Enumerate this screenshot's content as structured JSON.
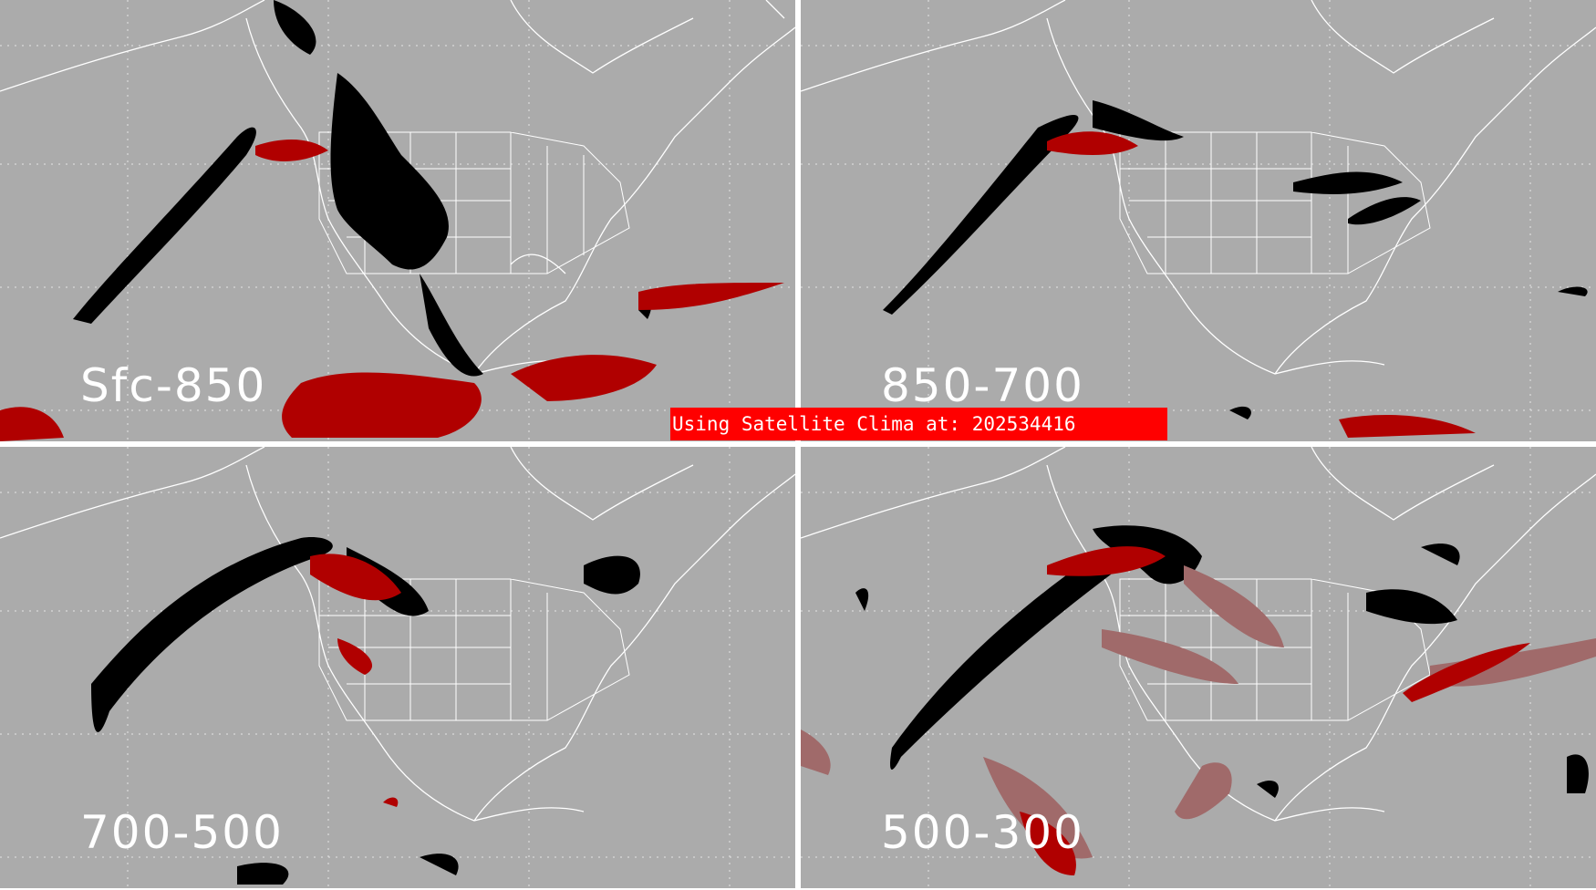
{
  "panels": [
    {
      "id": "p1",
      "label": "Sfc-850"
    },
    {
      "id": "p2",
      "label": "850-700"
    },
    {
      "id": "p3",
      "label": "700-500"
    },
    {
      "id": "p4",
      "label": "500-300"
    }
  ],
  "banner": {
    "text": "Using Satellite Clima at: 202534416"
  },
  "colors": {
    "background": "#ababab",
    "coastline": "#ffffff",
    "clear_black": "#000000",
    "cloud_red": "#b00000",
    "banner": "#ff0000"
  }
}
